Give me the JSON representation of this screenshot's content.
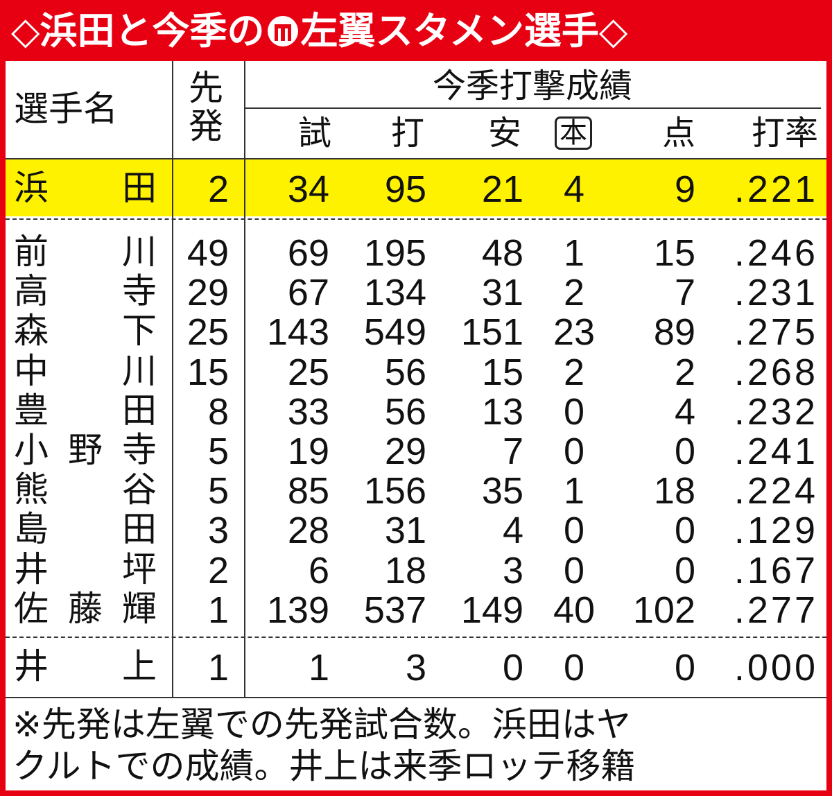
{
  "header": {
    "title_before": "◇浜田と今季の",
    "title_after": "左翼スタメン選手◇"
  },
  "table": {
    "columns": {
      "name": "選手名",
      "starts": "先発",
      "group": "今季打撃成績",
      "stats": [
        "試",
        "打",
        "安",
        "本",
        "点",
        "打率"
      ]
    },
    "highlight_row": [
      "浜田",
      "2",
      "34",
      "95",
      "21",
      "4",
      "9",
      ".221"
    ],
    "rows": [
      [
        "前川",
        "49",
        "69",
        "195",
        "48",
        "1",
        "15",
        ".246"
      ],
      [
        "高寺",
        "29",
        "67",
        "134",
        "31",
        "2",
        "7",
        ".231"
      ],
      [
        "森下",
        "25",
        "143",
        "549",
        "151",
        "23",
        "89",
        ".275"
      ],
      [
        "中川",
        "15",
        "25",
        "56",
        "15",
        "2",
        "2",
        ".268"
      ],
      [
        "豊田",
        "8",
        "33",
        "56",
        "13",
        "0",
        "4",
        ".232"
      ],
      [
        "小野寺",
        "5",
        "19",
        "29",
        "7",
        "0",
        "0",
        ".241"
      ],
      [
        "熊谷",
        "5",
        "85",
        "156",
        "35",
        "1",
        "18",
        ".224"
      ],
      [
        "島田",
        "3",
        "28",
        "31",
        "4",
        "0",
        "0",
        ".129"
      ],
      [
        "井坪",
        "2",
        "6",
        "18",
        "3",
        "0",
        "0",
        ".167"
      ],
      [
        "佐藤輝",
        "1",
        "139",
        "537",
        "149",
        "40",
        "102",
        ".277"
      ]
    ],
    "last_row": [
      "井上",
      "1",
      "1",
      "3",
      "0",
      "0",
      "0",
      ".000"
    ]
  },
  "footer": {
    "note": [
      "※先発は左翼での先発試合数。浜田はヤ",
      "クルトでの成績。井上は来季ロッテ移籍"
    ]
  }
}
